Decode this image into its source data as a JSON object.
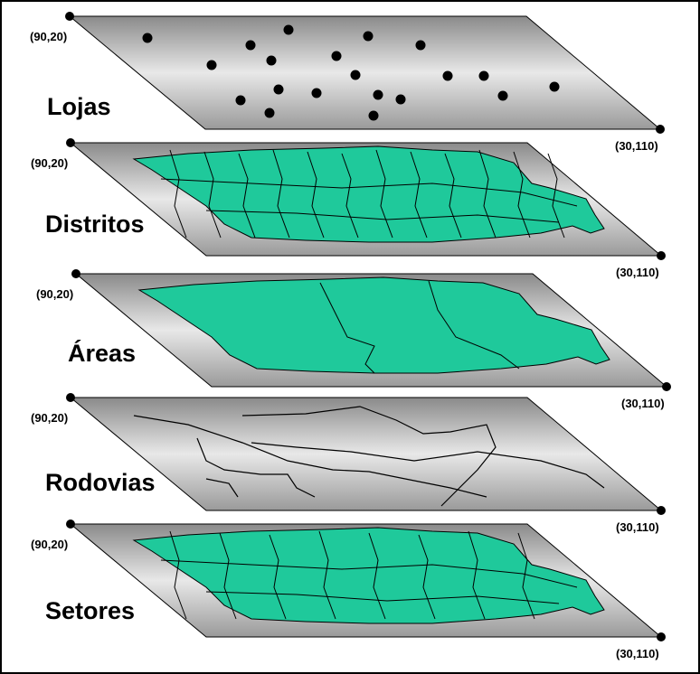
{
  "layers": [
    {
      "name": "Lojas",
      "corner_top": "(90,20)",
      "corner_bottom": "(30,110)"
    },
    {
      "name": "Distritos",
      "corner_top": "(90,20)",
      "corner_bottom": "(30,110)"
    },
    {
      "name": "Áreas",
      "corner_top": "(90,20)",
      "corner_bottom": "(30,110)"
    },
    {
      "name": "Rodovias",
      "corner_top": "(90,20)",
      "corner_bottom": "(30,110)"
    },
    {
      "name": "Setores",
      "corner_top": "(90,20)",
      "corner_bottom": "(30,110)"
    }
  ]
}
